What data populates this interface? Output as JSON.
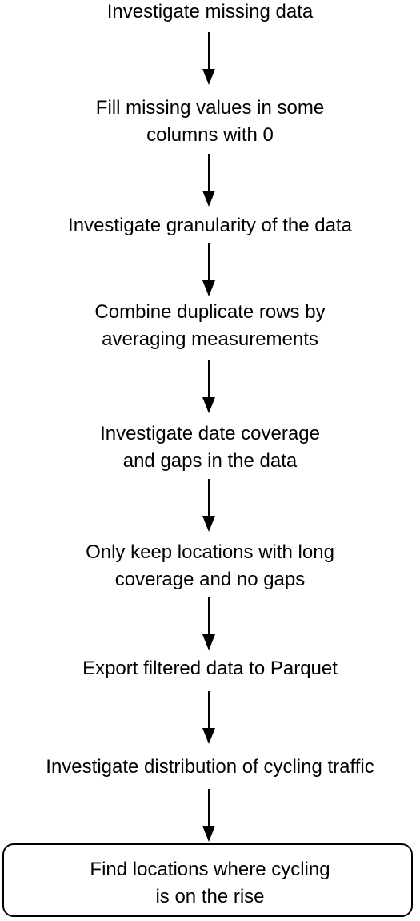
{
  "flow": {
    "steps": [
      {
        "lines": [
          "Investigate missing data"
        ]
      },
      {
        "lines": [
          "Fill missing values in some",
          "columns with 0"
        ]
      },
      {
        "lines": [
          "Investigate granularity of the data"
        ]
      },
      {
        "lines": [
          "Combine duplicate rows by",
          "averaging measurements"
        ]
      },
      {
        "lines": [
          "Investigate date coverage",
          "and gaps in the data"
        ]
      },
      {
        "lines": [
          "Only keep locations with long",
          "coverage and no gaps"
        ]
      },
      {
        "lines": [
          "Export filtered data to Parquet"
        ]
      },
      {
        "lines": [
          "Investigate distribution of cycling traffic"
        ]
      }
    ],
    "final": {
      "lines": [
        "Find locations where cycling",
        "is on the rise"
      ]
    }
  }
}
